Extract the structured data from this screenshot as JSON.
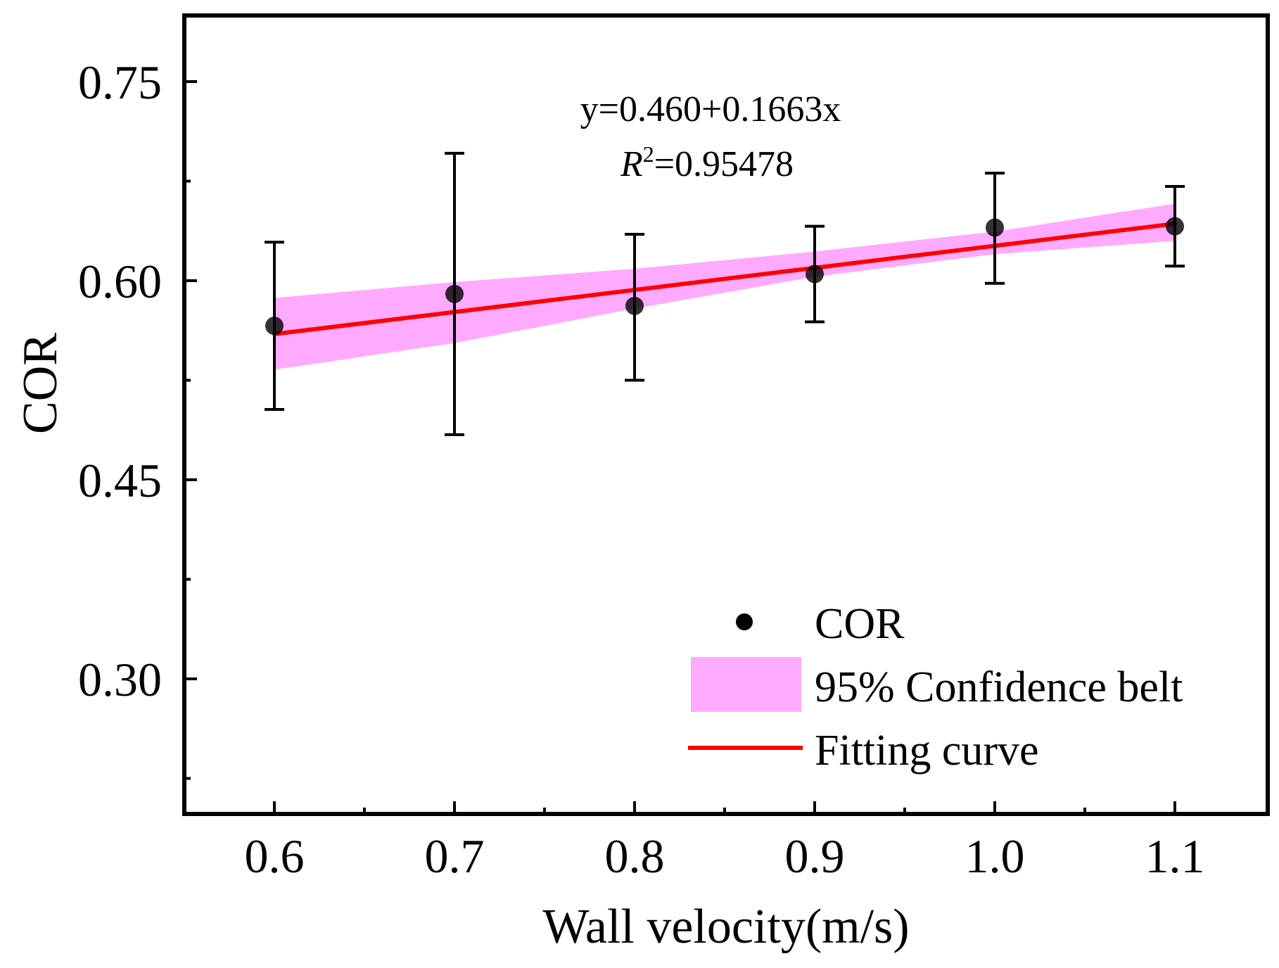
{
  "chart_data": {
    "type": "scatter",
    "xlabel": "Wall velocity(m/s)",
    "ylabel": "COR",
    "xlim": [
      0.55,
      1.15
    ],
    "ylim": [
      0.2,
      0.8
    ],
    "x_ticks": [
      0.6,
      0.7,
      0.8,
      0.9,
      1.0,
      1.1
    ],
    "x_tick_labels": [
      "0.6",
      "0.7",
      "0.8",
      "0.9",
      "1.0",
      "1.1"
    ],
    "y_ticks": [
      0.3,
      0.45,
      0.6,
      0.75
    ],
    "y_tick_labels": [
      "0.30",
      "0.45",
      "0.60",
      "0.75"
    ],
    "y_minor_ticks": [
      0.225,
      0.375,
      0.525,
      0.675
    ],
    "x_minor_ticks": [
      0.65,
      0.75,
      0.85,
      0.95,
      1.05
    ],
    "series": [
      {
        "name": "COR",
        "x": [
          0.6,
          0.7,
          0.8,
          0.9,
          1.0,
          1.1
        ],
        "y": [
          0.566,
          0.59,
          0.581,
          0.605,
          0.64,
          0.641
        ],
        "err_low": [
          0.503,
          0.484,
          0.525,
          0.569,
          0.598,
          0.611
        ],
        "err_high": [
          0.629,
          0.696,
          0.635,
          0.641,
          0.681,
          0.671
        ],
        "color": "#000000"
      }
    ],
    "fit": {
      "name": "Fitting curve",
      "intercept": 0.46,
      "slope": 0.1663,
      "x_range": [
        0.6,
        1.1
      ],
      "color": "#ff0000"
    },
    "confidence_band": {
      "name": "95% Confidence belt",
      "x": [
        0.6,
        0.7,
        0.8,
        0.9,
        1.0,
        1.1
      ],
      "lower": [
        0.533,
        0.553,
        0.579,
        0.603,
        0.62,
        0.63
      ],
      "upper": [
        0.587,
        0.599,
        0.609,
        0.622,
        0.637,
        0.658
      ],
      "color": "#ffaaff"
    },
    "annotation": {
      "equation": "y=0.460+0.1663x",
      "r2_label": "R",
      "r2_sup": "2",
      "r2_value": "=0.95478"
    },
    "legend": {
      "placement": "bottom-right",
      "entries": [
        "COR",
        "95% Confidence belt",
        "Fitting curve"
      ]
    }
  }
}
